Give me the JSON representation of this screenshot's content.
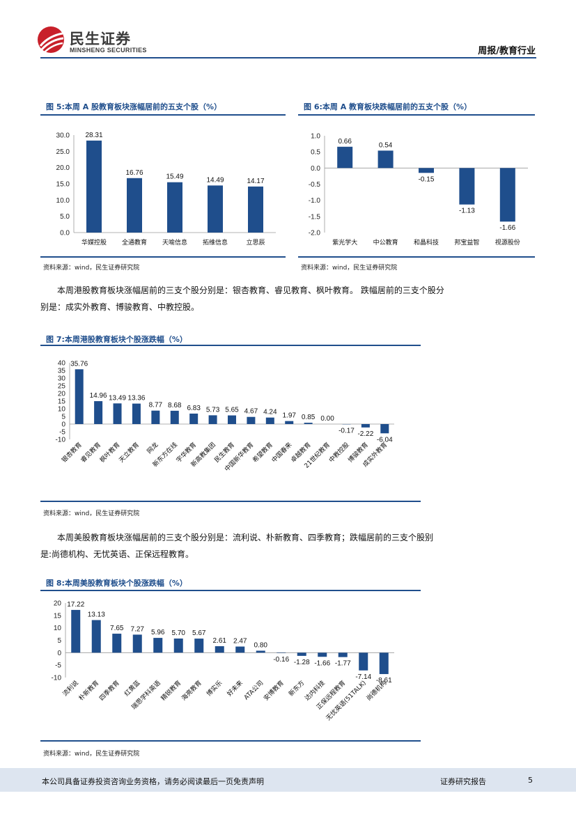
{
  "header": {
    "brand_cn": "民生证券",
    "brand_en": "MINSHENG SECURITIES",
    "section": "周报/教育行业"
  },
  "fig5": {
    "title": "图 5:本周 A 股教育板块涨幅居前的五支个股（%）",
    "source": "资料来源：wind，民生证券研究院"
  },
  "fig6": {
    "title": "图 6:本周 A 教育板块跌幅居前的五支个股（%）",
    "source": "资料来源：wind，民生证券研究院"
  },
  "para1": "本周港股教育板块涨幅居前的三支个股分别是：银杏教育、睿见教育、枫叶教育。 跌幅居前的三支个股分别是：成实外教育、博骏教育、中教控股。",
  "fig7": {
    "title": "图 7:本周港股教育板块个股涨跌幅（%）",
    "source": "资料来源：wind，民生证券研究院"
  },
  "para2": "本周美股教育板块涨幅居前的三支个股分别是：流利说、朴新教育、四季教育；跌幅居前的三支个股别是:尚德机构、无忧英语、正保远程教育。",
  "fig8": {
    "title": "图 8:本周美股教育板块个股涨跌幅（%）",
    "source": "资料来源：wind，民生证券研究院"
  },
  "footer": {
    "disclaimer": "本公司具备证券投资咨询业务资格，请务必阅读最后一页免责声明",
    "report_type": "证券研究报告",
    "page_number": "5"
  },
  "colors": {
    "bar": "#1f4e8c",
    "accent": "#1f4e8c",
    "logo_red": "#c8202a"
  },
  "chart_data": [
    {
      "id": "fig5",
      "type": "bar",
      "categories": [
        "华媒控股",
        "全通教育",
        "天喻信息",
        "拓维信息",
        "立思辰"
      ],
      "values": [
        28.31,
        16.76,
        15.49,
        14.49,
        14.17
      ],
      "labels": [
        "28.31",
        "16.76",
        "15.49",
        "14.49",
        "14.17"
      ],
      "yticks": [
        "30.0",
        "25.0",
        "20.0",
        "15.0",
        "10.0",
        "5.0",
        "0.0"
      ],
      "ylim": [
        0,
        30
      ]
    },
    {
      "id": "fig6",
      "type": "bar",
      "categories": [
        "紫光学大",
        "中公教育",
        "和晶科技",
        "邦宝益智",
        "视源股份"
      ],
      "values": [
        0.66,
        0.54,
        -0.15,
        -1.13,
        -1.66
      ],
      "labels": [
        "0.66",
        "0.54",
        "-0.15",
        "-1.13",
        "-1.66"
      ],
      "yticks": [
        "1.0",
        "0.5",
        "0.0",
        "-0.5",
        "-1.0",
        "-1.5",
        "-2.0"
      ],
      "ylim": [
        -2,
        1
      ]
    },
    {
      "id": "fig7",
      "type": "bar",
      "categories": [
        "银杏教育",
        "睿见教育",
        "枫叶教育",
        "天立教育",
        "网龙",
        "新东方在线",
        "宇华教育",
        "新高教集团",
        "民生教育",
        "中国新华教育",
        "希望教育",
        "中国春来",
        "卓越教育",
        "21世纪教育",
        "中教控股",
        "博骏教育",
        "成实外教育"
      ],
      "values": [
        35.76,
        14.96,
        13.49,
        13.36,
        8.77,
        8.68,
        6.83,
        5.73,
        5.65,
        4.67,
        4.24,
        1.97,
        0.85,
        0.0,
        -0.17,
        -2.22,
        -6.04
      ],
      "labels": [
        "35.76",
        "14.96",
        "13.49",
        "13.36",
        "8.77",
        "8.68",
        "6.83",
        "5.73",
        "5.65",
        "4.67",
        "4.24",
        "1.97",
        "0.85",
        "0.00",
        "-0.17",
        "-2.22",
        "-6.04"
      ],
      "yticks": [
        "40",
        "35",
        "30",
        "25",
        "20",
        "15",
        "10",
        "5",
        "0",
        "-5",
        "-10"
      ],
      "ylim": [
        -10,
        40
      ]
    },
    {
      "id": "fig8",
      "type": "bar",
      "categories": [
        "流利说",
        "朴新教育",
        "四季教育",
        "红黄蓝",
        "瑞思学科英语",
        "精锐教育",
        "海亮教育",
        "博实乐",
        "好未来",
        "ATA公司",
        "安博教育",
        "新东方",
        "达内科技",
        "正保远程教育",
        "无忧英语(51TALK)",
        "尚德机构"
      ],
      "values": [
        17.22,
        13.13,
        7.65,
        7.27,
        5.96,
        5.7,
        5.67,
        2.61,
        2.47,
        0.8,
        -0.16,
        -1.28,
        -1.66,
        -1.77,
        -7.14,
        -8.61
      ],
      "labels": [
        "17.22",
        "13.13",
        "7.65",
        "7.27",
        "5.96",
        "5.70",
        "5.67",
        "2.61",
        "2.47",
        "0.80",
        "-0.16",
        "-1.28",
        "-1.66",
        "-1.77",
        "-7.14",
        "-8.61"
      ],
      "yticks": [
        "20",
        "15",
        "10",
        "5",
        "0",
        "-5",
        "-10"
      ],
      "ylim": [
        -10,
        20
      ]
    }
  ]
}
